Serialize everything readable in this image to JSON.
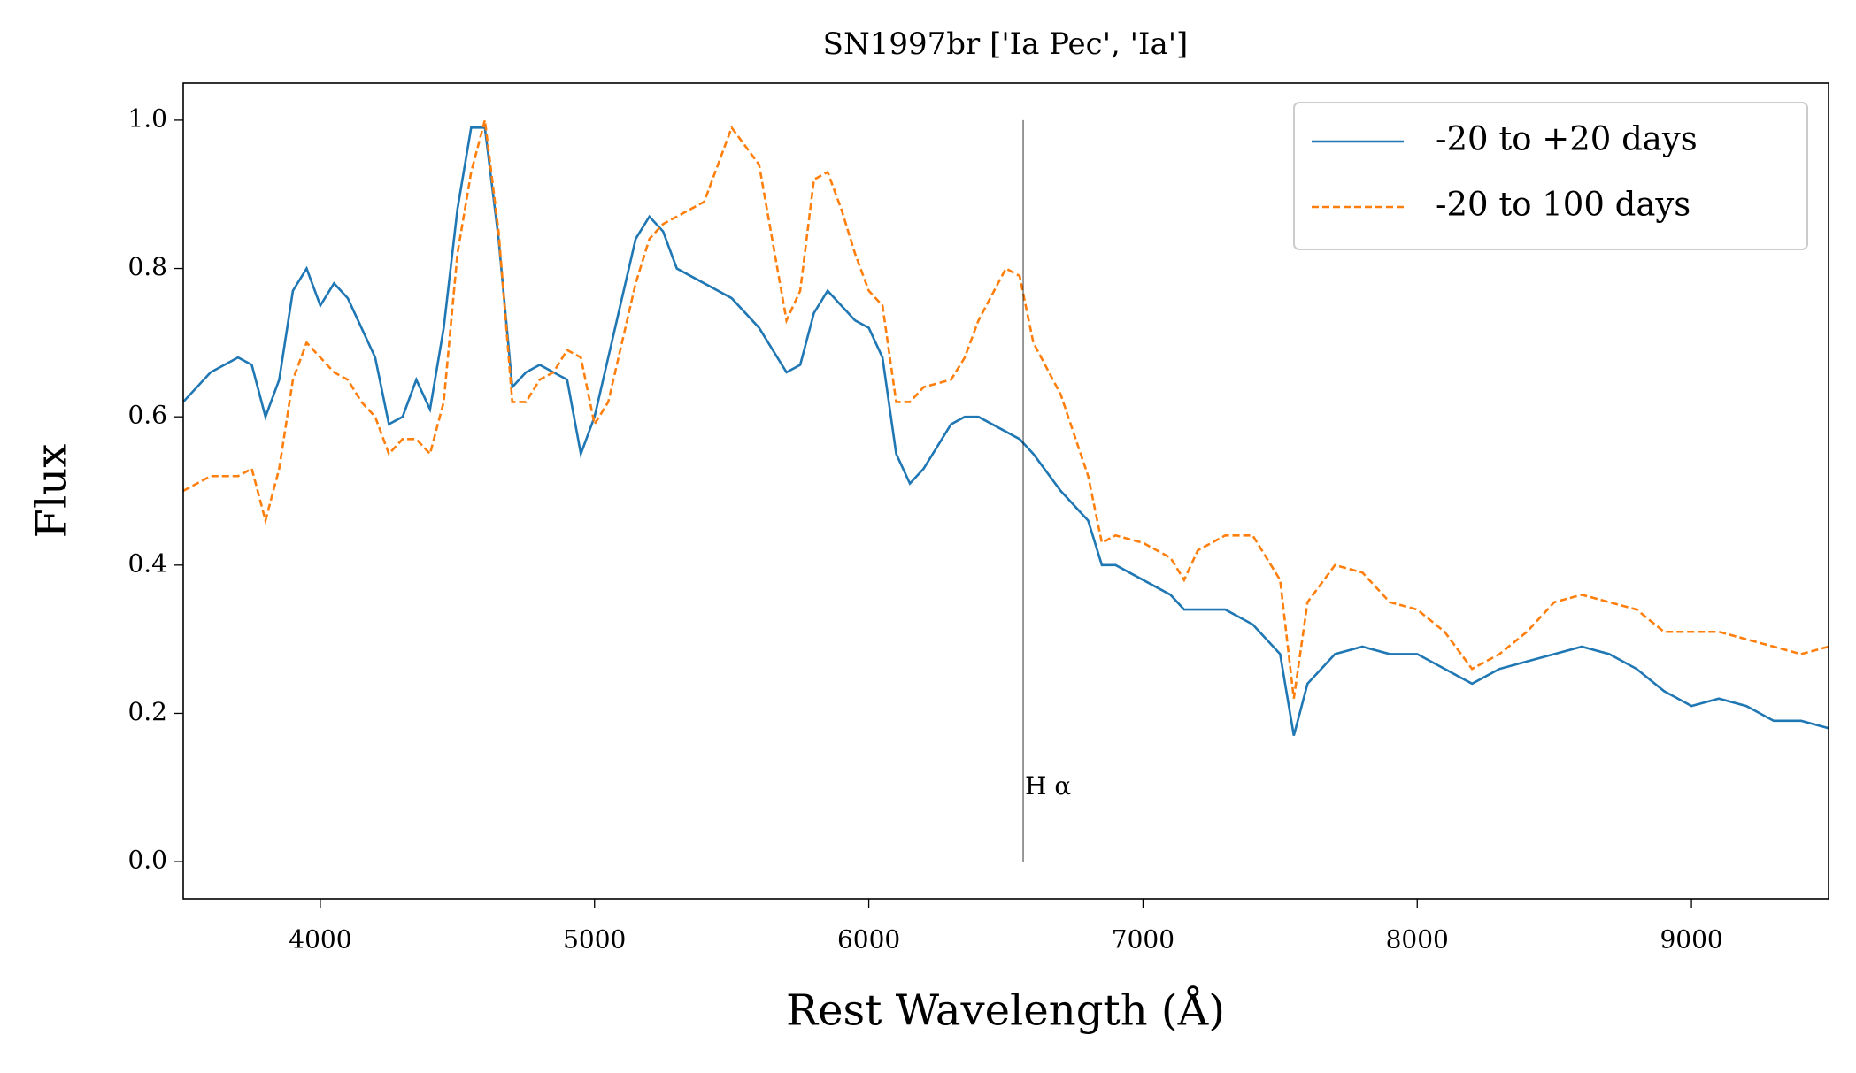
{
  "chart_data": {
    "type": "line",
    "title": "SN1997br ['Ia Pec', 'Ia']",
    "xlabel": "Rest Wavelength (Å)",
    "ylabel": "Flux",
    "x": [
      3500,
      3600,
      3700,
      3750,
      3800,
      3850,
      3900,
      3950,
      4000,
      4050,
      4100,
      4150,
      4200,
      4250,
      4300,
      4350,
      4400,
      4450,
      4500,
      4550,
      4600,
      4650,
      4700,
      4750,
      4800,
      4850,
      4900,
      4950,
      5000,
      5050,
      5100,
      5150,
      5200,
      5250,
      5300,
      5400,
      5500,
      5600,
      5700,
      5750,
      5800,
      5850,
      5900,
      5950,
      6000,
      6050,
      6100,
      6150,
      6200,
      6300,
      6350,
      6400,
      6500,
      6550,
      6600,
      6700,
      6800,
      6850,
      6900,
      7000,
      7100,
      7150,
      7200,
      7300,
      7400,
      7500,
      7550,
      7600,
      7700,
      7800,
      7900,
      8000,
      8100,
      8200,
      8300,
      8400,
      8500,
      8600,
      8700,
      8800,
      8900,
      9000,
      9100,
      9200,
      9300,
      9400,
      9500
    ],
    "series": [
      {
        "name": "-20 to +20 days",
        "color": "#1f77b4",
        "linestyle": "solid",
        "values": [
          0.62,
          0.66,
          0.68,
          0.67,
          0.6,
          0.65,
          0.77,
          0.8,
          0.75,
          0.78,
          0.76,
          0.72,
          0.68,
          0.59,
          0.6,
          0.65,
          0.61,
          0.72,
          0.88,
          0.99,
          0.99,
          0.84,
          0.64,
          0.66,
          0.67,
          0.66,
          0.65,
          0.55,
          0.6,
          0.68,
          0.76,
          0.84,
          0.87,
          0.85,
          0.8,
          0.78,
          0.76,
          0.72,
          0.66,
          0.67,
          0.74,
          0.77,
          0.75,
          0.73,
          0.72,
          0.68,
          0.55,
          0.51,
          0.53,
          0.59,
          0.6,
          0.6,
          0.58,
          0.57,
          0.55,
          0.5,
          0.46,
          0.4,
          0.4,
          0.38,
          0.36,
          0.34,
          0.34,
          0.34,
          0.32,
          0.28,
          0.17,
          0.24,
          0.28,
          0.29,
          0.28,
          0.28,
          0.26,
          0.24,
          0.26,
          0.27,
          0.28,
          0.29,
          0.28,
          0.26,
          0.23,
          0.21,
          0.22,
          0.21,
          0.19,
          0.19,
          0.18
        ]
      },
      {
        "name": "-20 to 100 days",
        "color": "#ff7f0e",
        "linestyle": "dashed",
        "values": [
          0.5,
          0.52,
          0.52,
          0.53,
          0.46,
          0.53,
          0.65,
          0.7,
          0.68,
          0.66,
          0.65,
          0.62,
          0.6,
          0.55,
          0.57,
          0.57,
          0.55,
          0.62,
          0.82,
          0.93,
          1.0,
          0.85,
          0.62,
          0.62,
          0.65,
          0.66,
          0.69,
          0.68,
          0.59,
          0.62,
          0.7,
          0.78,
          0.84,
          0.86,
          0.87,
          0.89,
          0.99,
          0.94,
          0.73,
          0.77,
          0.92,
          0.93,
          0.88,
          0.82,
          0.77,
          0.75,
          0.62,
          0.62,
          0.64,
          0.65,
          0.68,
          0.73,
          0.8,
          0.79,
          0.7,
          0.63,
          0.52,
          0.43,
          0.44,
          0.43,
          0.41,
          0.38,
          0.42,
          0.44,
          0.44,
          0.38,
          0.22,
          0.35,
          0.4,
          0.39,
          0.35,
          0.34,
          0.31,
          0.26,
          0.28,
          0.31,
          0.35,
          0.36,
          0.35,
          0.34,
          0.31,
          0.31,
          0.31,
          0.3,
          0.29,
          0.28,
          0.29
        ]
      }
    ],
    "annotation": {
      "text": "H α",
      "x": 6563,
      "y": 0.1,
      "ymin": 0,
      "ymax": 1
    },
    "xlim": [
      3500,
      9500
    ],
    "ylim": [
      -0.05,
      1.05
    ],
    "xticks": [
      4000,
      5000,
      6000,
      7000,
      8000,
      9000
    ],
    "yticks": [
      {
        "value": 0,
        "label": "0.0"
      },
      0.2,
      0.4,
      0.6,
      0.8,
      {
        "value": 1,
        "label": "1.0"
      }
    ],
    "legend": "upper right"
  }
}
